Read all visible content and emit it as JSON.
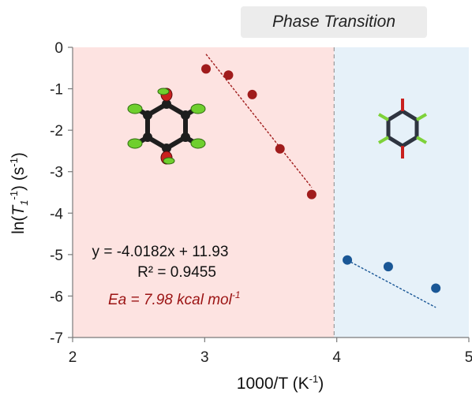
{
  "phase_label": "Phase Transition",
  "equation": "y = -4.0182x + 11.93",
  "r_squared": "R² = 0.9455",
  "ea_label": "Ea = 7.98 kcal mol",
  "ea_superscript": "-1",
  "colors": {
    "low_phase_bg": "#fde3e1",
    "high_phase_bg": "#e6f1f9",
    "series_low": "#a01c1c",
    "series_high": "#1a5796",
    "ea_text": "#9b1313"
  },
  "chart_data": {
    "type": "scatter",
    "title": "",
    "xlabel": "1000/T (K⁻¹)",
    "ylabel": "ln(T1⁻¹) (s⁻¹)",
    "xlim": [
      2,
      5
    ],
    "ylim": [
      -7,
      0
    ],
    "x_ticks": [
      "2",
      "3",
      "4",
      "5"
    ],
    "y_ticks": [
      "0",
      "-1",
      "-2",
      "-3",
      "-4",
      "-5",
      "-6",
      "-7"
    ],
    "phase_transition_x": 3.98,
    "grid": false,
    "series": [
      {
        "x": [
          3.01,
          3.18,
          3.36,
          3.57,
          3.81
        ],
        "y": [
          -0.52,
          -0.67,
          -1.14,
          -2.45,
          -3.55
        ],
        "trendline": {
          "slope": -4.0182,
          "intercept": 11.93,
          "x_range": [
            3.01,
            3.81
          ]
        }
      },
      {
        "x": [
          4.08,
          4.39,
          4.75
        ],
        "y": [
          -5.13,
          -5.29,
          -5.81
        ],
        "trendline": {
          "slope": -1.7,
          "intercept": 1.8,
          "x_range": [
            4.08,
            4.75
          ]
        }
      }
    ]
  }
}
